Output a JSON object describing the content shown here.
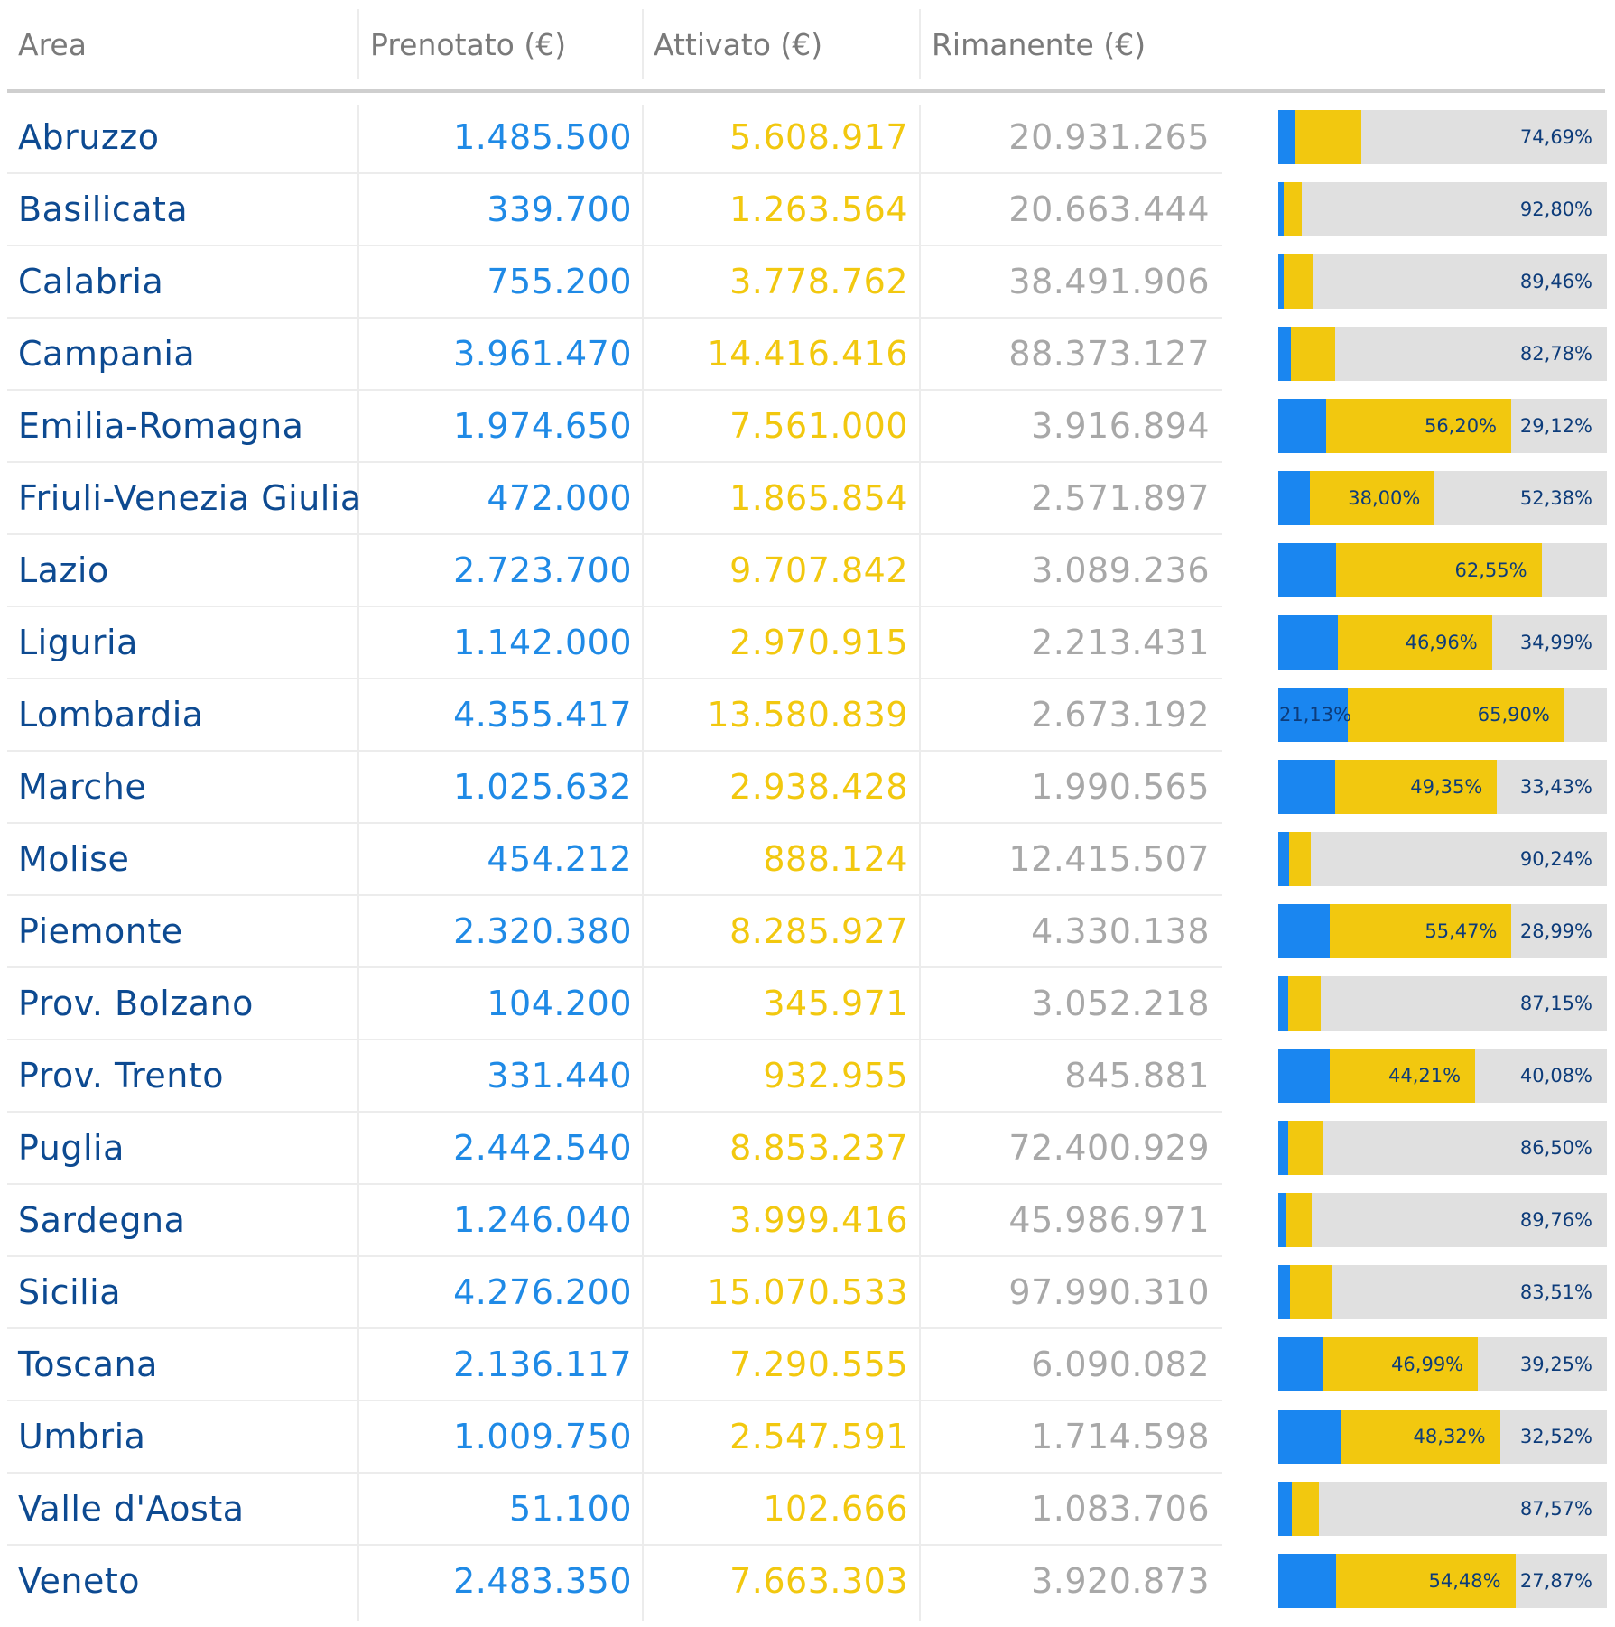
{
  "headers": {
    "area": "Area",
    "prenotato": "Prenotato (€)",
    "attivato": "Attivato (€)",
    "rimanente": "Rimanente (€)"
  },
  "colors": {
    "prenotato": "#1a86f0",
    "attivato": "#f2c80f",
    "rimanente": "#e0e0e0",
    "area_text": "#0d4a91"
  },
  "rows": [
    {
      "area": "Abruzzo",
      "prenotato": "1.485.500",
      "attivato": "5.608.917",
      "rimanente": "20.931.265",
      "label_attivato": "",
      "label_rimanente": "74,69%",
      "label_prenotato": ""
    },
    {
      "area": "Basilicata",
      "prenotato": "339.700",
      "attivato": "1.263.564",
      "rimanente": "20.663.444",
      "label_attivato": "",
      "label_rimanente": "92,80%",
      "label_prenotato": ""
    },
    {
      "area": "Calabria",
      "prenotato": "755.200",
      "attivato": "3.778.762",
      "rimanente": "38.491.906",
      "label_attivato": "",
      "label_rimanente": "89,46%",
      "label_prenotato": ""
    },
    {
      "area": "Campania",
      "prenotato": "3.961.470",
      "attivato": "14.416.416",
      "rimanente": "88.373.127",
      "label_attivato": "",
      "label_rimanente": "82,78%",
      "label_prenotato": ""
    },
    {
      "area": "Emilia-Romagna",
      "prenotato": "1.974.650",
      "attivato": "7.561.000",
      "rimanente": "3.916.894",
      "label_attivato": "56,20%",
      "label_rimanente": "29,12%",
      "label_prenotato": ""
    },
    {
      "area": "Friuli-Venezia Giulia",
      "prenotato": "472.000",
      "attivato": "1.865.854",
      "rimanente": "2.571.897",
      "label_attivato": "38,00%",
      "label_rimanente": "52,38%",
      "label_prenotato": ""
    },
    {
      "area": "Lazio",
      "prenotato": "2.723.700",
      "attivato": "9.707.842",
      "rimanente": "3.089.236",
      "label_attivato": "62,55%",
      "label_rimanente": "",
      "label_prenotato": ""
    },
    {
      "area": "Liguria",
      "prenotato": "1.142.000",
      "attivato": "2.970.915",
      "rimanente": "2.213.431",
      "label_attivato": "46,96%",
      "label_rimanente": "34,99%",
      "label_prenotato": ""
    },
    {
      "area": "Lombardia",
      "prenotato": "4.355.417",
      "attivato": "13.580.839",
      "rimanente": "2.673.192",
      "label_attivato": "65,90%",
      "label_rimanente": "",
      "label_prenotato": "21,13%"
    },
    {
      "area": "Marche",
      "prenotato": "1.025.632",
      "attivato": "2.938.428",
      "rimanente": "1.990.565",
      "label_attivato": "49,35%",
      "label_rimanente": "33,43%",
      "label_prenotato": ""
    },
    {
      "area": "Molise",
      "prenotato": "454.212",
      "attivato": "888.124",
      "rimanente": "12.415.507",
      "label_attivato": "",
      "label_rimanente": "90,24%",
      "label_prenotato": ""
    },
    {
      "area": "Piemonte",
      "prenotato": "2.320.380",
      "attivato": "8.285.927",
      "rimanente": "4.330.138",
      "label_attivato": "55,47%",
      "label_rimanente": "28,99%",
      "label_prenotato": ""
    },
    {
      "area": "Prov. Bolzano",
      "prenotato": "104.200",
      "attivato": "345.971",
      "rimanente": "3.052.218",
      "label_attivato": "",
      "label_rimanente": "87,15%",
      "label_prenotato": ""
    },
    {
      "area": "Prov. Trento",
      "prenotato": "331.440",
      "attivato": "932.955",
      "rimanente": "845.881",
      "label_attivato": "44,21%",
      "label_rimanente": "40,08%",
      "label_prenotato": ""
    },
    {
      "area": "Puglia",
      "prenotato": "2.442.540",
      "attivato": "8.853.237",
      "rimanente": "72.400.929",
      "label_attivato": "",
      "label_rimanente": "86,50%",
      "label_prenotato": ""
    },
    {
      "area": "Sardegna",
      "prenotato": "1.246.040",
      "attivato": "3.999.416",
      "rimanente": "45.986.971",
      "label_attivato": "",
      "label_rimanente": "89,76%",
      "label_prenotato": ""
    },
    {
      "area": "Sicilia",
      "prenotato": "4.276.200",
      "attivato": "15.070.533",
      "rimanente": "97.990.310",
      "label_attivato": "",
      "label_rimanente": "83,51%",
      "label_prenotato": ""
    },
    {
      "area": "Toscana",
      "prenotato": "2.136.117",
      "attivato": "7.290.555",
      "rimanente": "6.090.082",
      "label_attivato": "46,99%",
      "label_rimanente": "39,25%",
      "label_prenotato": ""
    },
    {
      "area": "Umbria",
      "prenotato": "1.009.750",
      "attivato": "2.547.591",
      "rimanente": "1.714.598",
      "label_attivato": "48,32%",
      "label_rimanente": "32,52%",
      "label_prenotato": ""
    },
    {
      "area": "Valle d'Aosta",
      "prenotato": "51.100",
      "attivato": "102.666",
      "rimanente": "1.083.706",
      "label_attivato": "",
      "label_rimanente": "87,57%",
      "label_prenotato": ""
    },
    {
      "area": "Veneto",
      "prenotato": "2.483.350",
      "attivato": "7.663.303",
      "rimanente": "3.920.873",
      "label_attivato": "54,48%",
      "label_rimanente": "27,87%",
      "label_prenotato": ""
    }
  ],
  "chart_data": {
    "type": "bar",
    "stacked": "100%",
    "orientation": "horizontal",
    "categories": [
      "Abruzzo",
      "Basilicata",
      "Calabria",
      "Campania",
      "Emilia-Romagna",
      "Friuli-Venezia Giulia",
      "Lazio",
      "Liguria",
      "Lombardia",
      "Marche",
      "Molise",
      "Piemonte",
      "Prov. Bolzano",
      "Prov. Trento",
      "Puglia",
      "Sardegna",
      "Sicilia",
      "Toscana",
      "Umbria",
      "Valle d'Aosta",
      "Veneto"
    ],
    "series": [
      {
        "name": "Prenotato (€)",
        "color": "#1a86f0",
        "values": [
          1485500,
          339700,
          755200,
          3961470,
          1974650,
          472000,
          2723700,
          1142000,
          4355417,
          1025632,
          454212,
          2320380,
          104200,
          331440,
          2442540,
          1246040,
          4276200,
          2136117,
          1009750,
          51100,
          2483350
        ]
      },
      {
        "name": "Attivato (€)",
        "color": "#f2c80f",
        "values": [
          5608917,
          1263564,
          3778762,
          14416416,
          7561000,
          1865854,
          9707842,
          2970915,
          13580839,
          2938428,
          888124,
          8285927,
          345971,
          932955,
          8853237,
          3999416,
          15070533,
          7290555,
          2547591,
          102666,
          7663303
        ]
      },
      {
        "name": "Rimanente (€)",
        "color": "#e0e0e0",
        "values": [
          20931265,
          20663444,
          38491906,
          88373127,
          3916894,
          2571897,
          3089236,
          2213431,
          2673192,
          1990565,
          12415507,
          4330138,
          3052218,
          845881,
          72400929,
          45986971,
          97990310,
          6090082,
          1714598,
          1083706,
          3920873
        ]
      }
    ],
    "xlim": [
      0,
      1
    ],
    "grid": false,
    "legend": "none"
  }
}
